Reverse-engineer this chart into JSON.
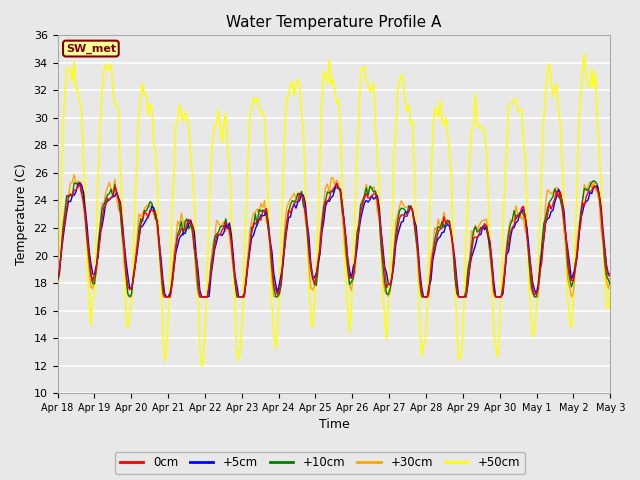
{
  "title": "Water Temperature Profile A",
  "xlabel": "Time",
  "ylabel": "Temperature (C)",
  "ylim": [
    10,
    36
  ],
  "yticks": [
    10,
    12,
    14,
    16,
    18,
    20,
    22,
    24,
    26,
    28,
    30,
    32,
    34,
    36
  ],
  "series_colors": [
    "red",
    "blue",
    "green",
    "orange",
    "yellow"
  ],
  "series_labels": [
    "0cm",
    "+5cm",
    "+10cm",
    "+30cm",
    "+50cm"
  ],
  "legend_label": "SW_met",
  "legend_bg": "#ffff99",
  "legend_border": "#800000",
  "fig_bg": "#e8e8e8",
  "plot_bg": "#e8e8e8",
  "grid_color": "#ffffff",
  "xtick_labels": [
    "Apr 18",
    "Apr 19",
    "Apr 20",
    "Apr 21",
    "Apr 22",
    "Apr 23",
    "Apr 24",
    "Apr 25",
    "Apr 26",
    "Apr 27",
    "Apr 28",
    "Apr 29",
    "Apr 30",
    "May 1",
    "May 2",
    "May 3"
  ],
  "title_fontsize": 11,
  "label_fontsize": 9,
  "tick_fontsize": 8,
  "xtick_fontsize": 7,
  "seed": 42
}
